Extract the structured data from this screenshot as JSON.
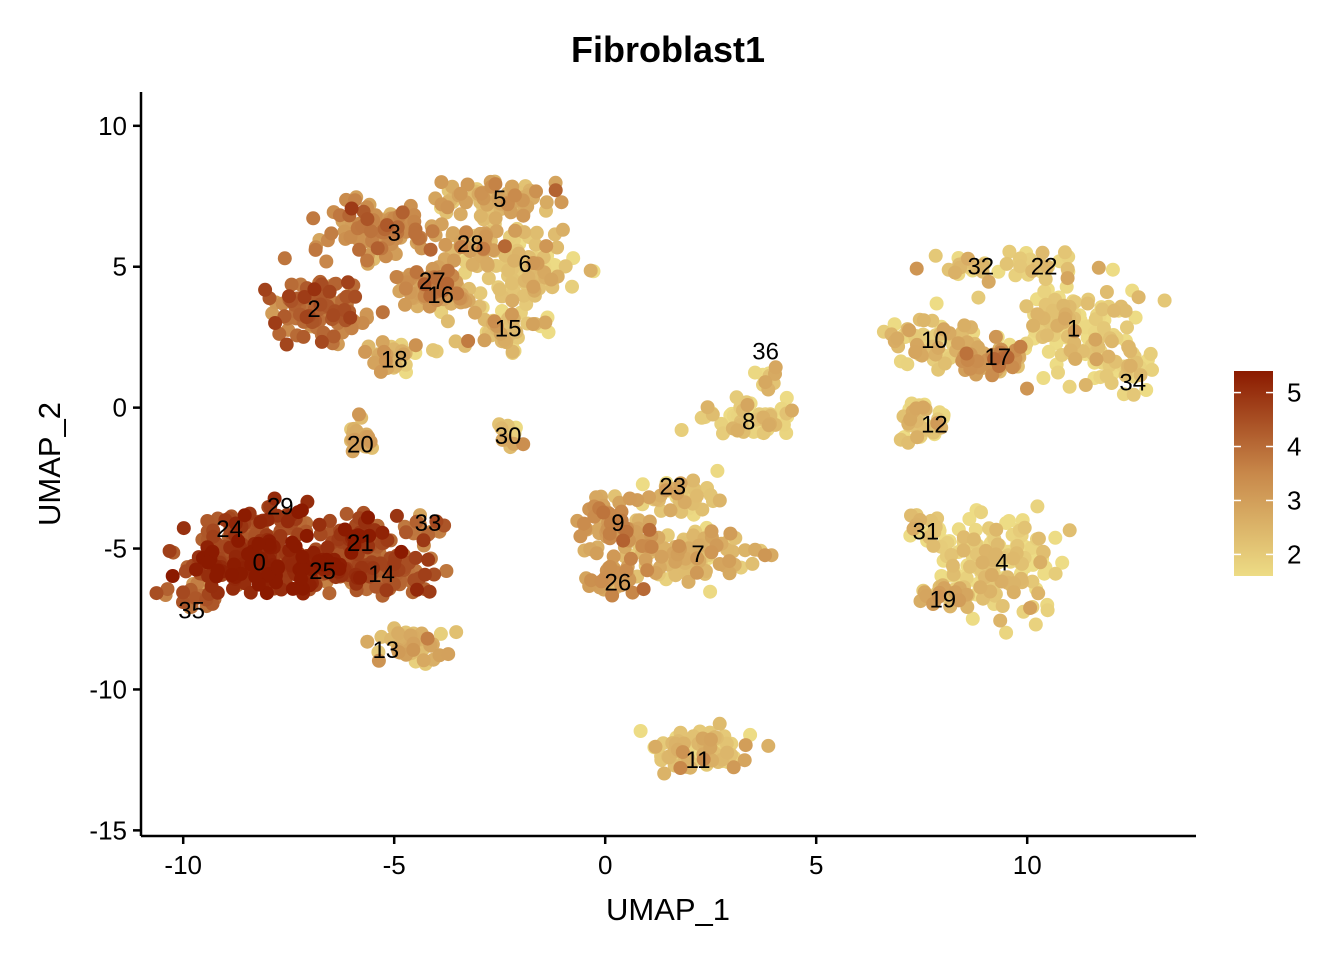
{
  "chart_data": {
    "type": "scatter",
    "title": "Fibroblast1",
    "xlabel": "UMAP_1",
    "ylabel": "UMAP_2",
    "xlim": [
      -11,
      14
    ],
    "ylim": [
      -15.2,
      11.2
    ],
    "xticks": [
      -10,
      -5,
      0,
      5,
      10
    ],
    "yticks": [
      -15,
      -10,
      -5,
      0,
      5,
      10
    ],
    "xtick_labels": [
      "-10",
      "-5",
      "0",
      "5",
      "10"
    ],
    "ytick_labels": [
      "-15",
      "-10",
      "-5",
      "0",
      "5",
      "10"
    ],
    "grid": false,
    "legend_position": "right",
    "colorscale": {
      "low_color": "#EDDC85",
      "mid_color": "#C8884A",
      "high_color": "#8B1A00",
      "min": 1.6,
      "max": 5.4,
      "ticks": [
        2,
        3,
        4,
        5
      ],
      "tick_labels": [
        "2",
        "3",
        "4",
        "5"
      ]
    },
    "clusters": [
      {
        "label": "0",
        "x": -8.2,
        "y": -5.6,
        "sx": 1.1,
        "sy": 0.6,
        "value": 4.9,
        "n": 240
      },
      {
        "label": "1",
        "x": 11.0,
        "y": 2.8,
        "sx": 1.0,
        "sy": 1.0,
        "value": 1.9,
        "n": 130
      },
      {
        "label": "2",
        "x": -6.8,
        "y": 3.5,
        "sx": 0.7,
        "sy": 0.8,
        "value": 3.9,
        "n": 120
      },
      {
        "label": "3",
        "x": -5.2,
        "y": 6.2,
        "sx": 0.9,
        "sy": 0.7,
        "value": 3.3,
        "n": 110
      },
      {
        "label": "4",
        "x": 9.3,
        "y": -5.5,
        "sx": 1.1,
        "sy": 1.2,
        "value": 1.9,
        "n": 150
      },
      {
        "label": "5",
        "x": -2.5,
        "y": 7.4,
        "sx": 0.9,
        "sy": 0.5,
        "value": 2.7,
        "n": 90
      },
      {
        "label": "6",
        "x": -1.9,
        "y": 5.0,
        "sx": 0.9,
        "sy": 0.9,
        "value": 2.0,
        "n": 110
      },
      {
        "label": "7",
        "x": 2.0,
        "y": -5.2,
        "sx": 0.9,
        "sy": 0.6,
        "value": 2.5,
        "n": 90
      },
      {
        "label": "8",
        "x": 3.4,
        "y": -0.4,
        "sx": 0.8,
        "sy": 0.4,
        "value": 2.0,
        "n": 60
      },
      {
        "label": "9",
        "x": 0.3,
        "y": -4.3,
        "sx": 0.6,
        "sy": 0.6,
        "value": 3.1,
        "n": 70
      },
      {
        "label": "10",
        "x": 7.8,
        "y": 2.4,
        "sx": 0.8,
        "sy": 0.6,
        "value": 2.1,
        "n": 70
      },
      {
        "label": "11",
        "x": 2.2,
        "y": -12.1,
        "sx": 0.9,
        "sy": 0.45,
        "value": 2.2,
        "n": 80
      },
      {
        "label": "12",
        "x": 7.5,
        "y": -0.4,
        "sx": 0.35,
        "sy": 0.6,
        "value": 2.0,
        "n": 40
      },
      {
        "label": "13",
        "x": -4.6,
        "y": -8.5,
        "sx": 0.6,
        "sy": 0.5,
        "value": 2.4,
        "n": 60
      },
      {
        "label": "14",
        "x": -5.2,
        "y": -5.8,
        "sx": 0.9,
        "sy": 0.5,
        "value": 4.3,
        "n": 110
      },
      {
        "label": "15",
        "x": -2.4,
        "y": 2.8,
        "sx": 0.6,
        "sy": 0.5,
        "value": 2.1,
        "n": 50
      },
      {
        "label": "16",
        "x": -3.9,
        "y": 4.0,
        "sx": 0.6,
        "sy": 0.5,
        "value": 2.9,
        "n": 60
      },
      {
        "label": "17",
        "x": 9.1,
        "y": 1.6,
        "sx": 0.5,
        "sy": 0.4,
        "value": 3.1,
        "n": 50
      },
      {
        "label": "18",
        "x": -5.0,
        "y": 1.8,
        "sx": 0.6,
        "sy": 0.35,
        "value": 2.3,
        "n": 40
      },
      {
        "label": "19",
        "x": 8.3,
        "y": -6.7,
        "sx": 0.5,
        "sy": 0.25,
        "value": 2.6,
        "n": 30
      },
      {
        "label": "20",
        "x": -5.9,
        "y": -1.2,
        "sx": 0.3,
        "sy": 0.5,
        "value": 2.6,
        "n": 30
      },
      {
        "label": "21",
        "x": -5.8,
        "y": -4.6,
        "sx": 0.6,
        "sy": 0.45,
        "value": 4.6,
        "n": 70
      },
      {
        "label": "22",
        "x": 10.5,
        "y": 5.0,
        "sx": 0.6,
        "sy": 0.3,
        "value": 1.9,
        "n": 30
      },
      {
        "label": "23",
        "x": 1.7,
        "y": -3.2,
        "sx": 0.7,
        "sy": 0.45,
        "value": 2.2,
        "n": 40
      },
      {
        "label": "24",
        "x": -8.8,
        "y": -4.5,
        "sx": 0.7,
        "sy": 0.4,
        "value": 4.5,
        "n": 50
      },
      {
        "label": "25",
        "x": -6.7,
        "y": -5.7,
        "sx": 0.6,
        "sy": 0.45,
        "value": 4.8,
        "n": 60
      },
      {
        "label": "26",
        "x": 0.3,
        "y": -6.0,
        "sx": 0.5,
        "sy": 0.3,
        "value": 3.0,
        "n": 30
      },
      {
        "label": "27",
        "x": -4.1,
        "y": 4.6,
        "sx": 0.45,
        "sy": 0.35,
        "value": 3.3,
        "n": 30
      },
      {
        "label": "28",
        "x": -3.2,
        "y": 5.8,
        "sx": 0.55,
        "sy": 0.4,
        "value": 2.8,
        "n": 40
      },
      {
        "label": "29",
        "x": -7.5,
        "y": -3.9,
        "sx": 0.5,
        "sy": 0.3,
        "value": 4.6,
        "n": 30
      },
      {
        "label": "30",
        "x": -2.3,
        "y": -1.0,
        "sx": 0.25,
        "sy": 0.3,
        "value": 2.3,
        "n": 12
      },
      {
        "label": "31",
        "x": 7.6,
        "y": -4.3,
        "sx": 0.35,
        "sy": 0.35,
        "value": 2.0,
        "n": 20
      },
      {
        "label": "32",
        "x": 8.7,
        "y": 5.0,
        "sx": 0.5,
        "sy": 0.3,
        "value": 2.0,
        "n": 25
      },
      {
        "label": "33",
        "x": -4.2,
        "y": -4.3,
        "sx": 0.35,
        "sy": 0.25,
        "value": 3.8,
        "n": 15
      },
      {
        "label": "34",
        "x": 12.3,
        "y": 1.4,
        "sx": 0.5,
        "sy": 0.5,
        "value": 1.9,
        "n": 30
      },
      {
        "label": "35",
        "x": -9.8,
        "y": -6.7,
        "sx": 0.45,
        "sy": 0.3,
        "value": 4.2,
        "n": 20
      },
      {
        "label": "36",
        "x": 3.8,
        "y": 1.0,
        "sx": 0.3,
        "sy": 0.3,
        "value": 2.0,
        "n": 15
      }
    ],
    "label_positions": [
      {
        "label": "0",
        "x": -8.2,
        "y": -5.5
      },
      {
        "label": "1",
        "x": 11.1,
        "y": 2.8
      },
      {
        "label": "2",
        "x": -6.9,
        "y": 3.5
      },
      {
        "label": "3",
        "x": -5.0,
        "y": 6.2
      },
      {
        "label": "4",
        "x": 9.4,
        "y": -5.5
      },
      {
        "label": "5",
        "x": -2.5,
        "y": 7.4
      },
      {
        "label": "6",
        "x": -1.9,
        "y": 5.1
      },
      {
        "label": "7",
        "x": 2.2,
        "y": -5.2
      },
      {
        "label": "8",
        "x": 3.4,
        "y": -0.5
      },
      {
        "label": "9",
        "x": 0.3,
        "y": -4.1
      },
      {
        "label": "10",
        "x": 7.8,
        "y": 2.4
      },
      {
        "label": "11",
        "x": 2.2,
        "y": -12.5
      },
      {
        "label": "12",
        "x": 7.8,
        "y": -0.6
      },
      {
        "label": "13",
        "x": -5.2,
        "y": -8.6
      },
      {
        "label": "14",
        "x": -5.3,
        "y": -5.9
      },
      {
        "label": "15",
        "x": -2.3,
        "y": 2.8
      },
      {
        "label": "16",
        "x": -3.9,
        "y": 4.0
      },
      {
        "label": "17",
        "x": 9.3,
        "y": 1.8
      },
      {
        "label": "18",
        "x": -5.0,
        "y": 1.7
      },
      {
        "label": "19",
        "x": 8.0,
        "y": -6.8
      },
      {
        "label": "20",
        "x": -5.8,
        "y": -1.3
      },
      {
        "label": "21",
        "x": -5.8,
        "y": -4.8
      },
      {
        "label": "22",
        "x": 10.4,
        "y": 5.0
      },
      {
        "label": "23",
        "x": 1.6,
        "y": -2.8
      },
      {
        "label": "24",
        "x": -8.9,
        "y": -4.3
      },
      {
        "label": "25",
        "x": -6.7,
        "y": -5.8
      },
      {
        "label": "26",
        "x": 0.3,
        "y": -6.2
      },
      {
        "label": "27",
        "x": -4.1,
        "y": 4.5
      },
      {
        "label": "28",
        "x": -3.2,
        "y": 5.8
      },
      {
        "label": "29",
        "x": -7.7,
        "y": -3.5
      },
      {
        "label": "30",
        "x": -2.3,
        "y": -1.0
      },
      {
        "label": "31",
        "x": 7.6,
        "y": -4.4
      },
      {
        "label": "32",
        "x": 8.9,
        "y": 5.0
      },
      {
        "label": "33",
        "x": -4.2,
        "y": -4.1
      },
      {
        "label": "34",
        "x": 12.5,
        "y": 0.9
      },
      {
        "label": "35",
        "x": -9.8,
        "y": -7.2
      },
      {
        "label": "36",
        "x": 3.8,
        "y": 2.0
      }
    ]
  }
}
